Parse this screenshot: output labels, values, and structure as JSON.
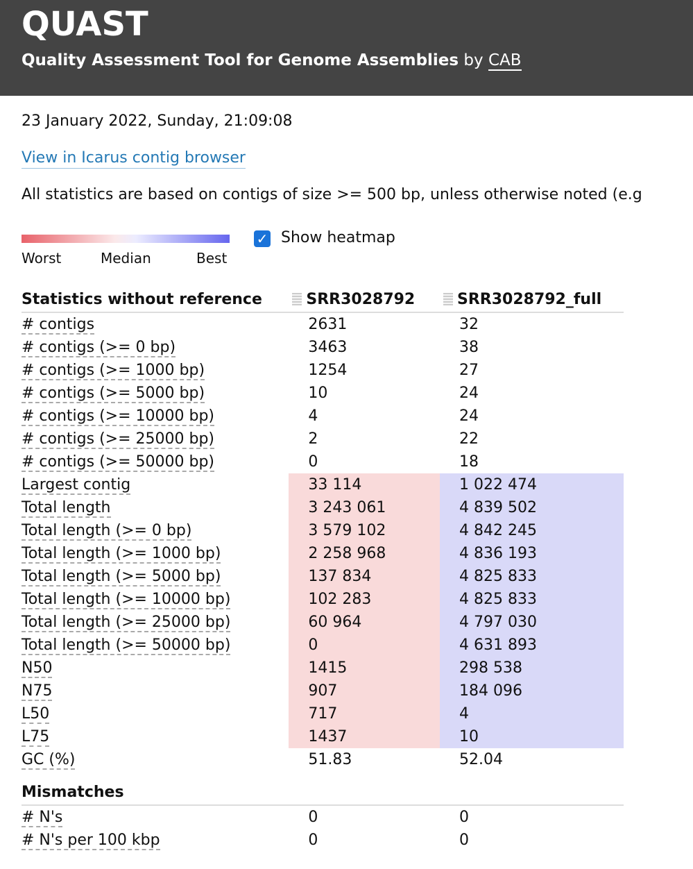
{
  "header": {
    "title": "QUAST",
    "subtitle": "Quality Assessment Tool for Genome Assemblies",
    "by": "by",
    "org_link": "CAB"
  },
  "datetime": "23 January 2022, Sunday, 21:09:08",
  "icarus_link": "View in Icarus contig browser",
  "stats_note": "All statistics are based on contigs of size >= 500 bp, unless otherwise noted (e.g",
  "legend": {
    "worst": "Worst",
    "median": "Median",
    "best": "Best"
  },
  "heatmap": {
    "label": "Show heatmap",
    "checked": true
  },
  "colors": {
    "header_bg": "#444444",
    "link": "#2479b5",
    "worst": "#f9dada",
    "best": "#d9d9f8",
    "checkbox": "#1a73d9"
  },
  "table": {
    "section1_title": "Statistics without reference",
    "assemblies": [
      "SRR3028792",
      "SRR3028792_full"
    ],
    "rows": [
      {
        "label": "# contigs",
        "a": "2631",
        "b": "32"
      },
      {
        "label": "# contigs (>= 0 bp)",
        "a": "3463",
        "b": "38"
      },
      {
        "label": "# contigs (>= 1000 bp)",
        "a": "1254",
        "b": "27"
      },
      {
        "label": "# contigs (>= 5000 bp)",
        "a": "10",
        "b": "24"
      },
      {
        "label": "# contigs (>= 10000 bp)",
        "a": "4",
        "b": "24"
      },
      {
        "label": "# contigs (>= 25000 bp)",
        "a": "2",
        "b": "22"
      },
      {
        "label": "# contigs (>= 50000 bp)",
        "a": "0",
        "b": "18"
      },
      {
        "label": "Largest contig",
        "a": "33 114",
        "b": "1 022 474",
        "heat": true
      },
      {
        "label": "Total length",
        "a": "3 243 061",
        "b": "4 839 502",
        "heat": true
      },
      {
        "label": "Total length (>= 0 bp)",
        "a": "3 579 102",
        "b": "4 842 245",
        "heat": true
      },
      {
        "label": "Total length (>= 1000 bp)",
        "a": "2 258 968",
        "b": "4 836 193",
        "heat": true
      },
      {
        "label": "Total length (>= 5000 bp)",
        "a": "137 834",
        "b": "4 825 833",
        "heat": true
      },
      {
        "label": "Total length (>= 10000 bp)",
        "a": "102 283",
        "b": "4 825 833",
        "heat": true
      },
      {
        "label": "Total length (>= 25000 bp)",
        "a": "60 964",
        "b": "4 797 030",
        "heat": true
      },
      {
        "label": "Total length (>= 50000 bp)",
        "a": "0",
        "b": "4 631 893",
        "heat": true
      },
      {
        "label": "N50",
        "a": "1415",
        "b": "298 538",
        "heat": true
      },
      {
        "label": "N75",
        "a": "907",
        "b": "184 096",
        "heat": true
      },
      {
        "label": "L50",
        "a": "717",
        "b": "4",
        "heat": true
      },
      {
        "label": "L75",
        "a": "1437",
        "b": "10",
        "heat": true
      },
      {
        "label": "GC (%)",
        "a": "51.83",
        "b": "52.04"
      }
    ],
    "section2_title": "Mismatches",
    "rows2": [
      {
        "label": "# N's",
        "a": "0",
        "b": "0"
      },
      {
        "label": "# N's per 100 kbp",
        "a": "0",
        "b": "0"
      }
    ]
  }
}
